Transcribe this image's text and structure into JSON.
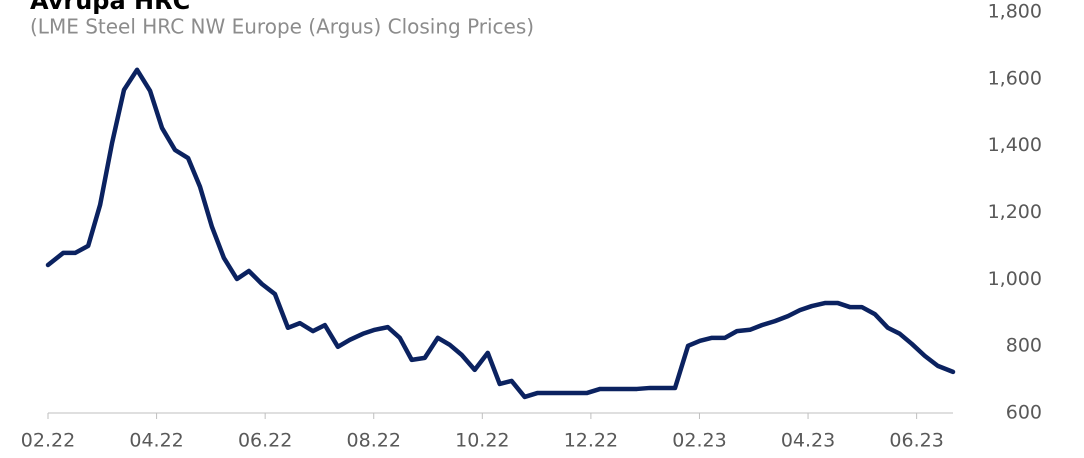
{
  "chart_data": {
    "type": "line",
    "title": "Avrupa HRC",
    "subtitle": "(LME Steel HRC NW Europe (Argus) Closing Prices)",
    "x": [
      0,
      0.28,
      0.5,
      0.74,
      0.96,
      1.18,
      1.4,
      1.64,
      1.88,
      2.1,
      2.34,
      2.58,
      2.8,
      3.02,
      3.24,
      3.48,
      3.7,
      3.94,
      4.18,
      4.42,
      4.64,
      4.88,
      5.1,
      5.34,
      5.56,
      5.8,
      6.02,
      6.26,
      6.48,
      6.7,
      6.94,
      7.18,
      7.4,
      7.62,
      7.86,
      8.1,
      8.32,
      8.54,
      8.78,
      9.02,
      9.24,
      9.93,
      10.17,
      10.85,
      11.09,
      11.55,
      11.79,
      12.01,
      12.23,
      12.47,
      12.69,
      12.93,
      13.15,
      13.39,
      13.63,
      13.85,
      14.07,
      14.31,
      14.55,
      14.77,
      14.99,
      15.23,
      15.47,
      15.69,
      15.91,
      16.15,
      16.39,
      16.67
    ],
    "series": [
      {
        "name": "LME Steel HRC NW Europe (Argus)",
        "color": "#0b2260",
        "values": [
          1043,
          1079,
          1079,
          1100,
          1223,
          1408,
          1567,
          1627,
          1564,
          1453,
          1387,
          1363,
          1277,
          1157,
          1064,
          1001,
          1025,
          986,
          956,
          855,
          869,
          845,
          863,
          798,
          819,
          837,
          849,
          857,
          825,
          759,
          765,
          825,
          804,
          774,
          729,
          780,
          687,
          696,
          648,
          660,
          660,
          660,
          672,
          672,
          675,
          675,
          801,
          816,
          825,
          825,
          845,
          849,
          863,
          875,
          890,
          908,
          920,
          929,
          929,
          917,
          917,
          896,
          855,
          837,
          807,
          771,
          741,
          723
        ]
      }
    ],
    "xlim": [
      0,
      16.67
    ],
    "xticks": [
      {
        "value": 0,
        "label": "02.22"
      },
      {
        "value": 2,
        "label": "04.22"
      },
      {
        "value": 4,
        "label": "06.22"
      },
      {
        "value": 6,
        "label": "08.22"
      },
      {
        "value": 8,
        "label": "10.22"
      },
      {
        "value": 10,
        "label": "12.22"
      },
      {
        "value": 12,
        "label": "02.23"
      },
      {
        "value": 14,
        "label": "04.23"
      },
      {
        "value": 16,
        "label": "06.23"
      }
    ],
    "ylim": [
      600,
      1800
    ],
    "yticks": [
      600,
      {
        "value": 800,
        "label": "800"
      },
      {
        "value": 1000,
        "label": "1,000"
      },
      {
        "value": 1200,
        "label": "1,200"
      },
      {
        "value": 1400,
        "label": "1,400"
      },
      {
        "value": 1600,
        "label": "1,600"
      },
      {
        "value": 1800,
        "label": "1,800"
      }
    ]
  }
}
